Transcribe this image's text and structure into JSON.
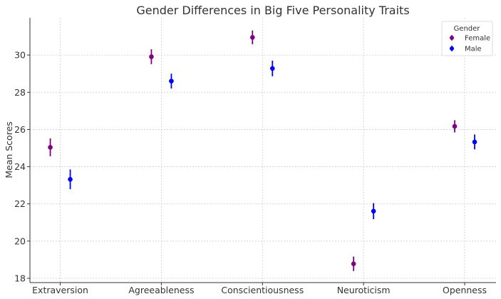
{
  "chart_data": {
    "type": "scatter",
    "title": "Gender Differences in Big Five Personality Traits",
    "xlabel": "",
    "ylabel": "Mean Scores",
    "categories": [
      "Extraversion",
      "Agreeableness",
      "Conscientiousness",
      "Neuroticism",
      "Openness"
    ],
    "ylim": [
      17.77,
      32.0
    ],
    "yticks": [
      18,
      20,
      22,
      24,
      26,
      28,
      30
    ],
    "grid": true,
    "legend": {
      "title": "Gender",
      "placement": "top-right"
    },
    "series": [
      {
        "name": "Female",
        "color": "#800080",
        "values": [
          25.04,
          29.91,
          30.95,
          18.78,
          26.17
        ],
        "errors": [
          0.48,
          0.4,
          0.37,
          0.39,
          0.33
        ]
      },
      {
        "name": "Male",
        "color": "#0000ff",
        "values": [
          23.32,
          28.6,
          29.28,
          21.61,
          25.33
        ],
        "errors": [
          0.53,
          0.4,
          0.42,
          0.43,
          0.4
        ]
      }
    ]
  }
}
